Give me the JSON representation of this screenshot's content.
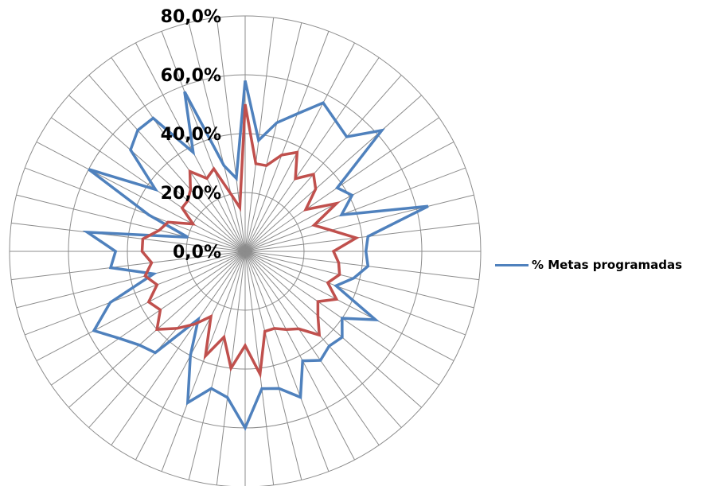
{
  "chart_data": {
    "type": "radar",
    "categories_count": 52,
    "radial_ticks": [
      "0,0%",
      "20,0%",
      "40,0%",
      "60,0%",
      "80,0%"
    ],
    "rlim": [
      0,
      0.8
    ],
    "grid": true,
    "legend_position": "right",
    "series": [
      {
        "name": "% Metas programadas",
        "color": "#4f81bd",
        "values": [
          0.58,
          0.38,
          0.45,
          0.5,
          0.57,
          0.54,
          0.52,
          0.62,
          0.38,
          0.41,
          0.35,
          0.64,
          0.42,
          0.41,
          0.42,
          0.38,
          0.33,
          0.5,
          0.4,
          0.44,
          0.43,
          0.45,
          0.42,
          0.53,
          0.48,
          0.47,
          0.6,
          0.5,
          0.48,
          0.55,
          0.4,
          0.28,
          0.46,
          0.48,
          0.52,
          0.58,
          0.49,
          0.32,
          0.46,
          0.44,
          0.54,
          0.2,
          0.35,
          0.6,
          0.37,
          0.52,
          0.55,
          0.55,
          0.38,
          0.58,
          0.3,
          0.25
        ]
      },
      {
        "name": "",
        "color": "#c0504d",
        "values": [
          0.5,
          0.3,
          0.3,
          0.35,
          0.38,
          0.3,
          0.35,
          0.32,
          0.25,
          0.35,
          0.25,
          0.3,
          0.38,
          0.3,
          0.32,
          0.33,
          0.3,
          0.35,
          0.3,
          0.33,
          0.38,
          0.32,
          0.3,
          0.28,
          0.28,
          0.42,
          0.32,
          0.4,
          0.3,
          0.38,
          0.25,
          0.3,
          0.35,
          0.4,
          0.35,
          0.37,
          0.32,
          0.35,
          0.32,
          0.35,
          0.35,
          0.3,
          0.28,
          0.2,
          0.26,
          0.26,
          0.28,
          0.33,
          0.28,
          0.3,
          0.2,
          0.15
        ]
      }
    ]
  }
}
